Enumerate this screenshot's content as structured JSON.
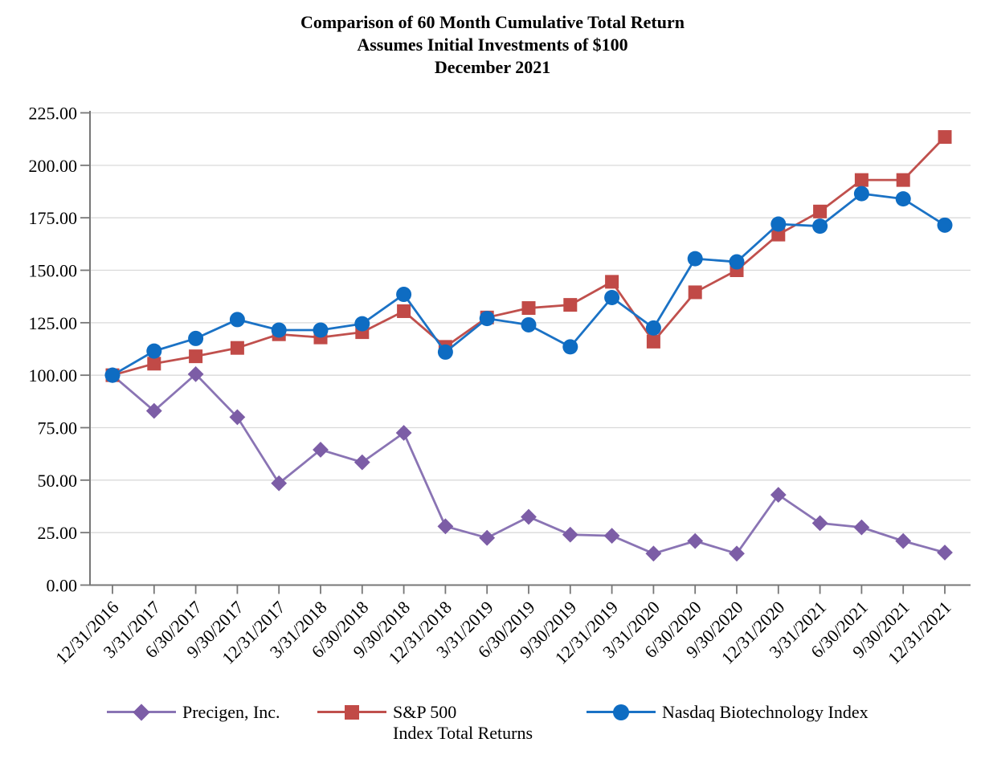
{
  "title": {
    "line1": "Comparison of 60 Month Cumulative Total Return",
    "line2": "Assumes Initial Investments of $100",
    "line3": "December 2021"
  },
  "chart_data": {
    "type": "line",
    "title": "Comparison of 60 Month Cumulative Total Return — Assumes Initial Investments of $100 — December 2021",
    "xlabel": "",
    "ylabel": "",
    "ylim": [
      0,
      225
    ],
    "y_tick_step": 25,
    "y_tick_labels": [
      "0.00",
      "25.00",
      "50.00",
      "75.00",
      "100.00",
      "125.00",
      "150.00",
      "175.00",
      "200.00",
      "225.00"
    ],
    "grid": "horizontal",
    "legend_position": "bottom",
    "categories": [
      "12/31/2016",
      "3/31/2017",
      "6/30/2017",
      "9/30/2017",
      "12/31/2017",
      "3/31/2018",
      "6/30/2018",
      "9/30/2018",
      "12/31/2018",
      "3/31/2019",
      "6/30/2019",
      "9/30/2019",
      "12/31/2019",
      "3/31/2020",
      "6/30/2020",
      "9/30/2020",
      "12/31/2020",
      "3/31/2021",
      "6/30/2021",
      "9/30/2021",
      "12/31/2021"
    ],
    "series": [
      {
        "key": "precigen",
        "name": "Precigen, Inc.",
        "marker": "diamond",
        "marker_color": "#7C5DA6",
        "line_color": "#8A74B4",
        "values": [
          100.0,
          83.0,
          100.5,
          80.0,
          48.5,
          64.5,
          58.5,
          72.5,
          28.0,
          22.5,
          32.5,
          24.0,
          23.5,
          15.0,
          21.0,
          15.0,
          43.0,
          29.5,
          27.5,
          21.0,
          15.5
        ]
      },
      {
        "key": "sp500",
        "name": "S&P 500 Index Total Returns",
        "marker": "square",
        "marker_color": "#C14A47",
        "line_color": "#C0504D",
        "values": [
          100.0,
          105.5,
          109.0,
          113.0,
          119.5,
          118.0,
          120.5,
          130.5,
          113.5,
          127.5,
          132.0,
          133.5,
          144.5,
          116.0,
          139.5,
          150.0,
          167.0,
          178.0,
          193.0,
          193.0,
          213.5
        ]
      },
      {
        "key": "nbi",
        "name": "Nasdaq Biotechnology Index",
        "marker": "circle",
        "marker_color": "#0E6CC2",
        "line_color": "#1B72C5",
        "values": [
          100.0,
          111.5,
          117.5,
          126.5,
          121.5,
          121.5,
          124.5,
          138.5,
          111.0,
          127.0,
          124.0,
          113.5,
          137.0,
          122.5,
          155.5,
          154.0,
          172.0,
          171.0,
          186.5,
          184.0,
          171.5
        ]
      }
    ],
    "legend": {
      "items": [
        {
          "series": 0,
          "label": "Precigen, Inc.",
          "label_line2": ""
        },
        {
          "series": 1,
          "label": "S&P 500",
          "label_line2": "Index Total Returns"
        },
        {
          "series": 2,
          "label": "Nasdaq Biotechnology Index",
          "label_line2": ""
        }
      ]
    },
    "colors": {
      "gridline": "#DADADA",
      "axis": "#777777",
      "text": "#000000",
      "background": "#FFFFFF"
    }
  }
}
